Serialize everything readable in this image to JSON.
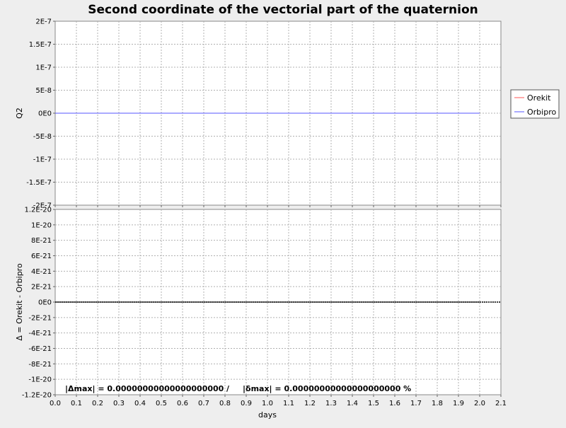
{
  "chart_data": {
    "type": "line",
    "title": "Second coordinate of the vectorial part of the quaternion",
    "xlabel": "days",
    "xlim": [
      0.0,
      2.1
    ],
    "x_ticks": [
      "0.0",
      "0.1",
      "0.2",
      "0.3",
      "0.4",
      "0.5",
      "0.6",
      "0.7",
      "0.8",
      "0.9",
      "1.0",
      "1.1",
      "1.2",
      "1.3",
      "1.4",
      "1.5",
      "1.6",
      "1.7",
      "1.8",
      "1.9",
      "2.0",
      "2.1"
    ],
    "x_tick_values": [
      0.0,
      0.1,
      0.2,
      0.3,
      0.4,
      0.5,
      0.6,
      0.7,
      0.8,
      0.9,
      1.0,
      1.1,
      1.2,
      1.3,
      1.4,
      1.5,
      1.6,
      1.7,
      1.8,
      1.9,
      2.0,
      2.1
    ],
    "grid": true,
    "legend_position": "right",
    "panels": [
      {
        "ylabel": "Q2",
        "ylim": [
          -2e-07,
          2e-07
        ],
        "y_ticks": [
          "2E-7",
          "1.5E-7",
          "1E-7",
          "5E-8",
          "0E0",
          "-5E-8",
          "-1E-7",
          "-1.5E-7",
          "-2E-7"
        ],
        "y_tick_values": [
          2e-07,
          1.5e-07,
          1e-07,
          5e-08,
          0,
          -5e-08,
          -1e-07,
          -1.5e-07,
          -2e-07
        ],
        "series": [
          {
            "name": "Orekit",
            "color": "#ff5555",
            "x": [
              0.0,
              2.0
            ],
            "y": [
              0,
              0
            ]
          },
          {
            "name": "Orbipro",
            "color": "#5555ff",
            "x": [
              0.0,
              2.0
            ],
            "y": [
              0,
              0
            ]
          }
        ]
      },
      {
        "ylabel": "Δ = Orekit - Orbipro",
        "ylim": [
          -1.2e-20,
          1.2e-20
        ],
        "y_ticks": [
          "1.2E-20",
          "1E-20",
          "8E-21",
          "6E-21",
          "4E-21",
          "2E-21",
          "0E0",
          "-2E-21",
          "-4E-21",
          "-6E-21",
          "-8E-21",
          "-1E-20",
          "-1.2E-20"
        ],
        "y_tick_values": [
          1.2e-20,
          1e-20,
          8e-21,
          6e-21,
          4e-21,
          2e-21,
          0,
          -2e-21,
          -4e-21,
          -6e-21,
          -8e-21,
          -1e-20,
          -1.2e-20
        ],
        "series": [
          {
            "color": "#000000",
            "x": [
              0.0,
              2.0
            ],
            "y": [
              0,
              0
            ]
          }
        ]
      }
    ],
    "legend": [
      "Orekit",
      "Orbipro"
    ],
    "annotation": {
      "delta_max": "|Δmax| = 0.00000000000000000000",
      "separator": "/",
      "delta_rel": "|δmax| = 0.00000000000000000000 %"
    }
  }
}
